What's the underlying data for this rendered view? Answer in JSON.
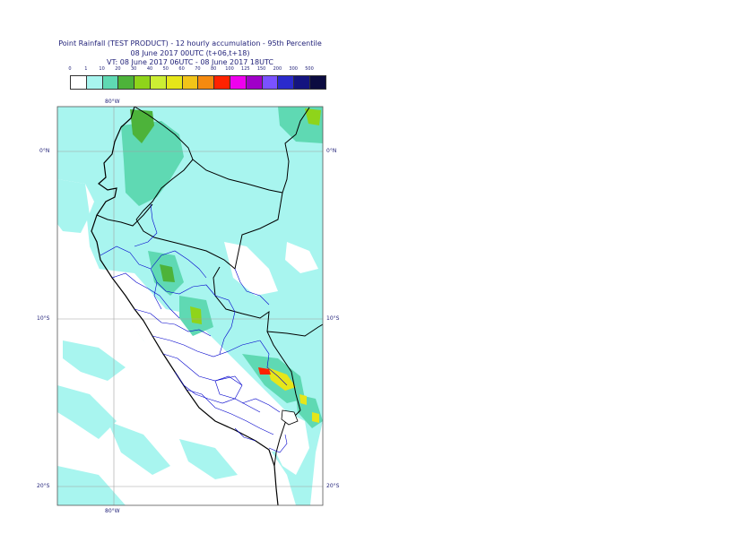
{
  "header": {
    "title_line1": "Point Rainfall (TEST PRODUCT) - 12 hourly accumulation - 95th Percentile",
    "title_line2": "08 June 2017 00UTC (t+06,t+18)",
    "title_line3": "VT: 08 June 2017 06UTC - 08 June 2017 18UTC"
  },
  "legend": {
    "thresholds": [
      "0",
      "1",
      "10",
      "20",
      "30",
      "40",
      "50",
      "60",
      "70",
      "80",
      "100",
      "125",
      "150",
      "200",
      "300",
      "500"
    ],
    "colors": [
      "#ffffff",
      "#a8f5ef",
      "#5fd9b3",
      "#4db33a",
      "#8fd41a",
      "#ccee33",
      "#e6e619",
      "#f2c419",
      "#f58a0f",
      "#ff2200",
      "#ee00ee",
      "#a000c8",
      "#7a52ff",
      "#2a2acc",
      "#141480",
      "#0b0b40"
    ]
  },
  "axes": {
    "top_lon": "80°W",
    "bottom_lon": "80°W",
    "lat_labels": [
      "0°N",
      "10°S",
      "20°S"
    ]
  },
  "map_colors": {
    "sea": "#ffffff",
    "light_rain": "#a8f5ef",
    "medium_rain": "#5fd9b3",
    "green": "#4db33a",
    "lime": "#8fd41a",
    "yellow": "#e6e619",
    "red": "#ff2200",
    "coast": "#000000",
    "admin": "#0000cc",
    "grid": "#a0a0a0"
  }
}
